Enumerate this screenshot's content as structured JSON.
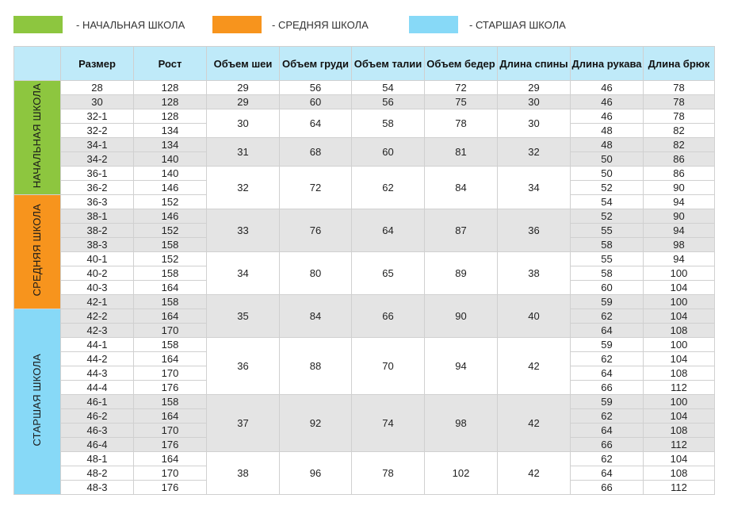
{
  "legend": [
    {
      "label": "- НАЧАЛЬНАЯ ШКОЛА",
      "color": "#8dc63f"
    },
    {
      "label": "- СРЕДНЯЯ ШКОЛА",
      "color": "#f7941d"
    },
    {
      "label": "- СТАРШАЯ ШКОЛА",
      "color": "#87d9f7"
    }
  ],
  "header_color": "#bfeaf9",
  "columns": [
    "Размер",
    "Рост",
    "Объем шеи",
    "Объем груди",
    "Объем талии",
    "Объем бедер",
    "Длина спины",
    "Длина рукава",
    "Длина брюк"
  ],
  "bands": [
    {
      "label": "НАЧАЛЬНАЯ ШКОЛА",
      "color": "#8dc63f",
      "rows": 8
    },
    {
      "label": "СРЕДНЯЯ ШКОЛА",
      "color": "#f7941d",
      "rows": 8
    },
    {
      "label": "СТАРШАЯ ШКОЛА",
      "color": "#87d9f7",
      "rows": 13
    }
  ],
  "groups": [
    {
      "shade": "white",
      "neck": "29",
      "chest": "56",
      "waist": "54",
      "hips": "72",
      "back": "29",
      "rows": [
        {
          "size": "28",
          "height": "128",
          "sleeve": "46",
          "trousers": "78"
        }
      ]
    },
    {
      "shade": "grey",
      "neck": "29",
      "chest": "60",
      "waist": "56",
      "hips": "75",
      "back": "30",
      "rows": [
        {
          "size": "30",
          "height": "128",
          "sleeve": "46",
          "trousers": "78"
        }
      ]
    },
    {
      "shade": "white",
      "neck": "30",
      "chest": "64",
      "waist": "58",
      "hips": "78",
      "back": "30",
      "rows": [
        {
          "size": "32-1",
          "height": "128",
          "sleeve": "46",
          "trousers": "78"
        },
        {
          "size": "32-2",
          "height": "134",
          "sleeve": "48",
          "trousers": "82"
        }
      ]
    },
    {
      "shade": "grey",
      "neck": "31",
      "chest": "68",
      "waist": "60",
      "hips": "81",
      "back": "32",
      "rows": [
        {
          "size": "34-1",
          "height": "134",
          "sleeve": "48",
          "trousers": "82"
        },
        {
          "size": "34-2",
          "height": "140",
          "sleeve": "50",
          "trousers": "86"
        }
      ]
    },
    {
      "shade": "white",
      "neck": "32",
      "chest": "72",
      "waist": "62",
      "hips": "84",
      "back": "34",
      "rows": [
        {
          "size": "36-1",
          "height": "140",
          "sleeve": "50",
          "trousers": "86"
        },
        {
          "size": "36-2",
          "height": "146",
          "sleeve": "52",
          "trousers": "90"
        },
        {
          "size": "36-3",
          "height": "152",
          "sleeve": "54",
          "trousers": "94"
        }
      ]
    },
    {
      "shade": "grey",
      "neck": "33",
      "chest": "76",
      "waist": "64",
      "hips": "87",
      "back": "36",
      "rows": [
        {
          "size": "38-1",
          "height": "146",
          "sleeve": "52",
          "trousers": "90"
        },
        {
          "size": "38-2",
          "height": "152",
          "sleeve": "55",
          "trousers": "94"
        },
        {
          "size": "38-3",
          "height": "158",
          "sleeve": "58",
          "trousers": "98"
        }
      ]
    },
    {
      "shade": "white",
      "neck": "34",
      "chest": "80",
      "waist": "65",
      "hips": "89",
      "back": "38",
      "rows": [
        {
          "size": "40-1",
          "height": "152",
          "sleeve": "55",
          "trousers": "94"
        },
        {
          "size": "40-2",
          "height": "158",
          "sleeve": "58",
          "trousers": "100"
        },
        {
          "size": "40-3",
          "height": "164",
          "sleeve": "60",
          "trousers": "104"
        }
      ]
    },
    {
      "shade": "grey",
      "neck": "35",
      "chest": "84",
      "waist": "66",
      "hips": "90",
      "back": "40",
      "rows": [
        {
          "size": "42-1",
          "height": "158",
          "sleeve": "59",
          "trousers": "100"
        },
        {
          "size": "42-2",
          "height": "164",
          "sleeve": "62",
          "trousers": "104"
        },
        {
          "size": "42-3",
          "height": "170",
          "sleeve": "64",
          "trousers": "108"
        }
      ]
    },
    {
      "shade": "white",
      "neck": "36",
      "chest": "88",
      "waist": "70",
      "hips": "94",
      "back": "42",
      "rows": [
        {
          "size": "44-1",
          "height": "158",
          "sleeve": "59",
          "trousers": "100"
        },
        {
          "size": "44-2",
          "height": "164",
          "sleeve": "62",
          "trousers": "104"
        },
        {
          "size": "44-3",
          "height": "170",
          "sleeve": "64",
          "trousers": "108"
        },
        {
          "size": "44-4",
          "height": "176",
          "sleeve": "66",
          "trousers": "112"
        }
      ]
    },
    {
      "shade": "grey",
      "neck": "37",
      "chest": "92",
      "waist": "74",
      "hips": "98",
      "back": "42",
      "rows": [
        {
          "size": "46-1",
          "height": "158",
          "sleeve": "59",
          "trousers": "100"
        },
        {
          "size": "46-2",
          "height": "164",
          "sleeve": "62",
          "trousers": "104"
        },
        {
          "size": "46-3",
          "height": "170",
          "sleeve": "64",
          "trousers": "108"
        },
        {
          "size": "46-4",
          "height": "176",
          "sleeve": "66",
          "trousers": "112"
        }
      ]
    },
    {
      "shade": "white",
      "neck": "38",
      "chest": "96",
      "waist": "78",
      "hips": "102",
      "back": "42",
      "rows": [
        {
          "size": "48-1",
          "height": "164",
          "sleeve": "62",
          "trousers": "104"
        },
        {
          "size": "48-2",
          "height": "170",
          "sleeve": "64",
          "trousers": "108"
        },
        {
          "size": "48-3",
          "height": "176",
          "sleeve": "66",
          "trousers": "112"
        }
      ]
    }
  ]
}
